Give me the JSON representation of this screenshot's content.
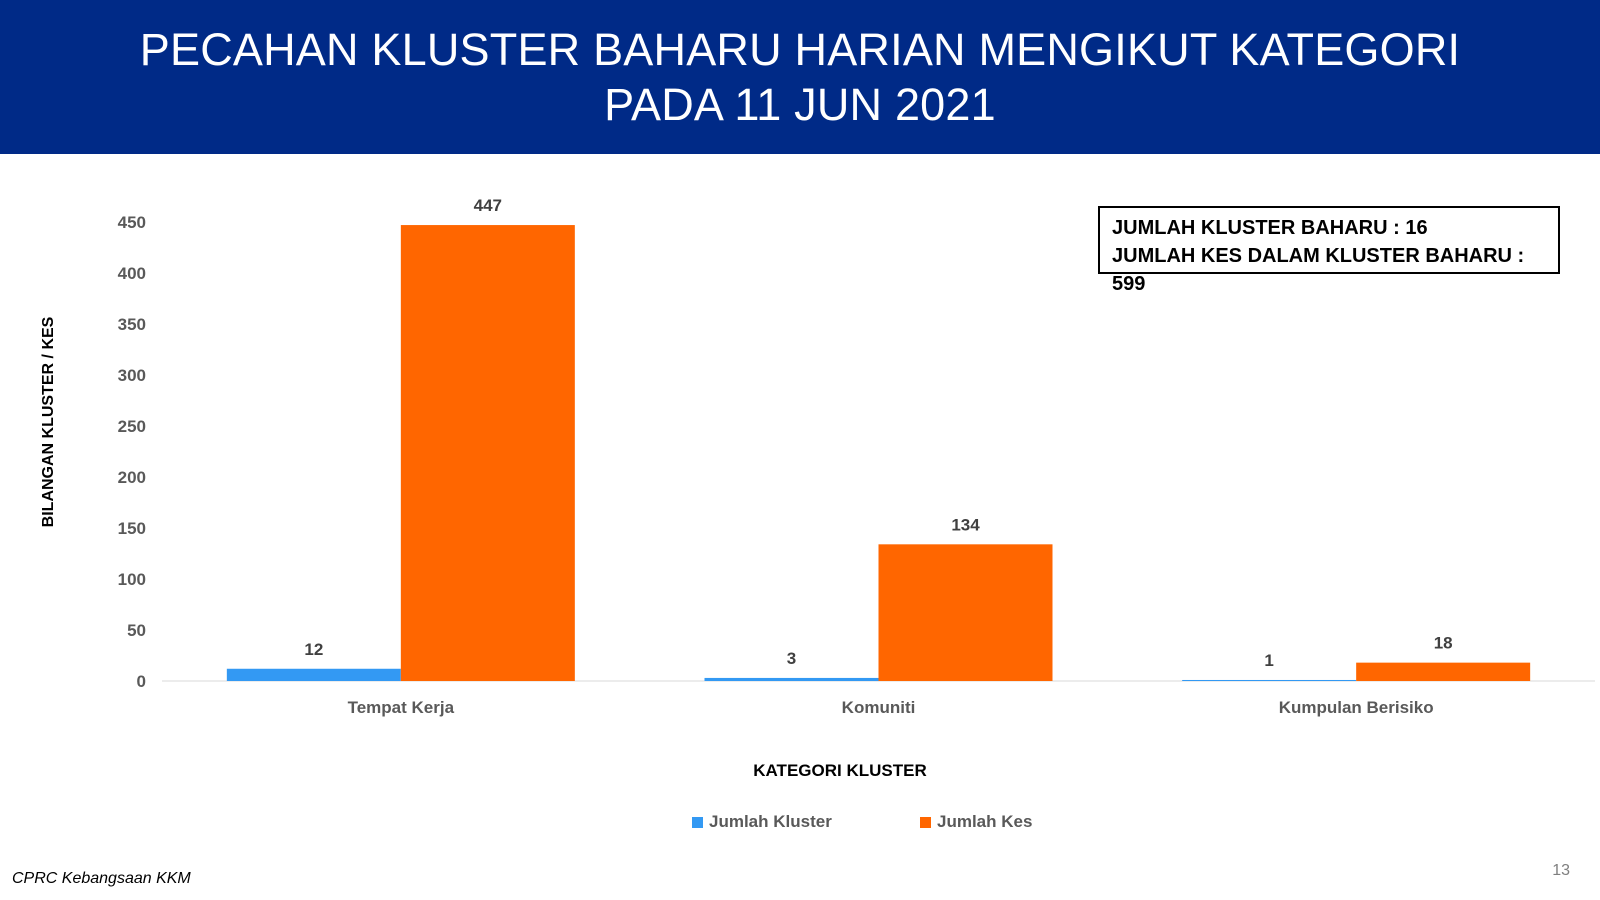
{
  "header": {
    "title_line1": "PECAHAN KLUSTER BAHARU HARIAN MENGIKUT KATEGORI",
    "title_line2": "PADA 11 JUN 2021"
  },
  "summary": {
    "line1": "JUMLAH KLUSTER BAHARU : 16",
    "line2": "JUMLAH KES DALAM KLUSTER BAHARU : 599"
  },
  "chart_data": {
    "type": "bar",
    "categories": [
      "Tempat Kerja",
      "Komuniti",
      "Kumpulan Berisiko"
    ],
    "series": [
      {
        "name": "Jumlah Kluster",
        "values": [
          12,
          3,
          1
        ],
        "color": "#3399f3"
      },
      {
        "name": "Jumlah Kes",
        "values": [
          447,
          134,
          18
        ],
        "color": "#ff6600"
      }
    ],
    "xlabel": "KATEGORI KLUSTER",
    "ylabel": "BILANGAN KLUSTER / KES",
    "ylim": [
      0,
      450
    ],
    "yticks": [
      0,
      50,
      100,
      150,
      200,
      250,
      300,
      350,
      400,
      450
    ],
    "grid": false,
    "legend_position": "bottom"
  },
  "footer": {
    "source": "CPRC Kebangsaan KKM",
    "page_number": "13"
  }
}
